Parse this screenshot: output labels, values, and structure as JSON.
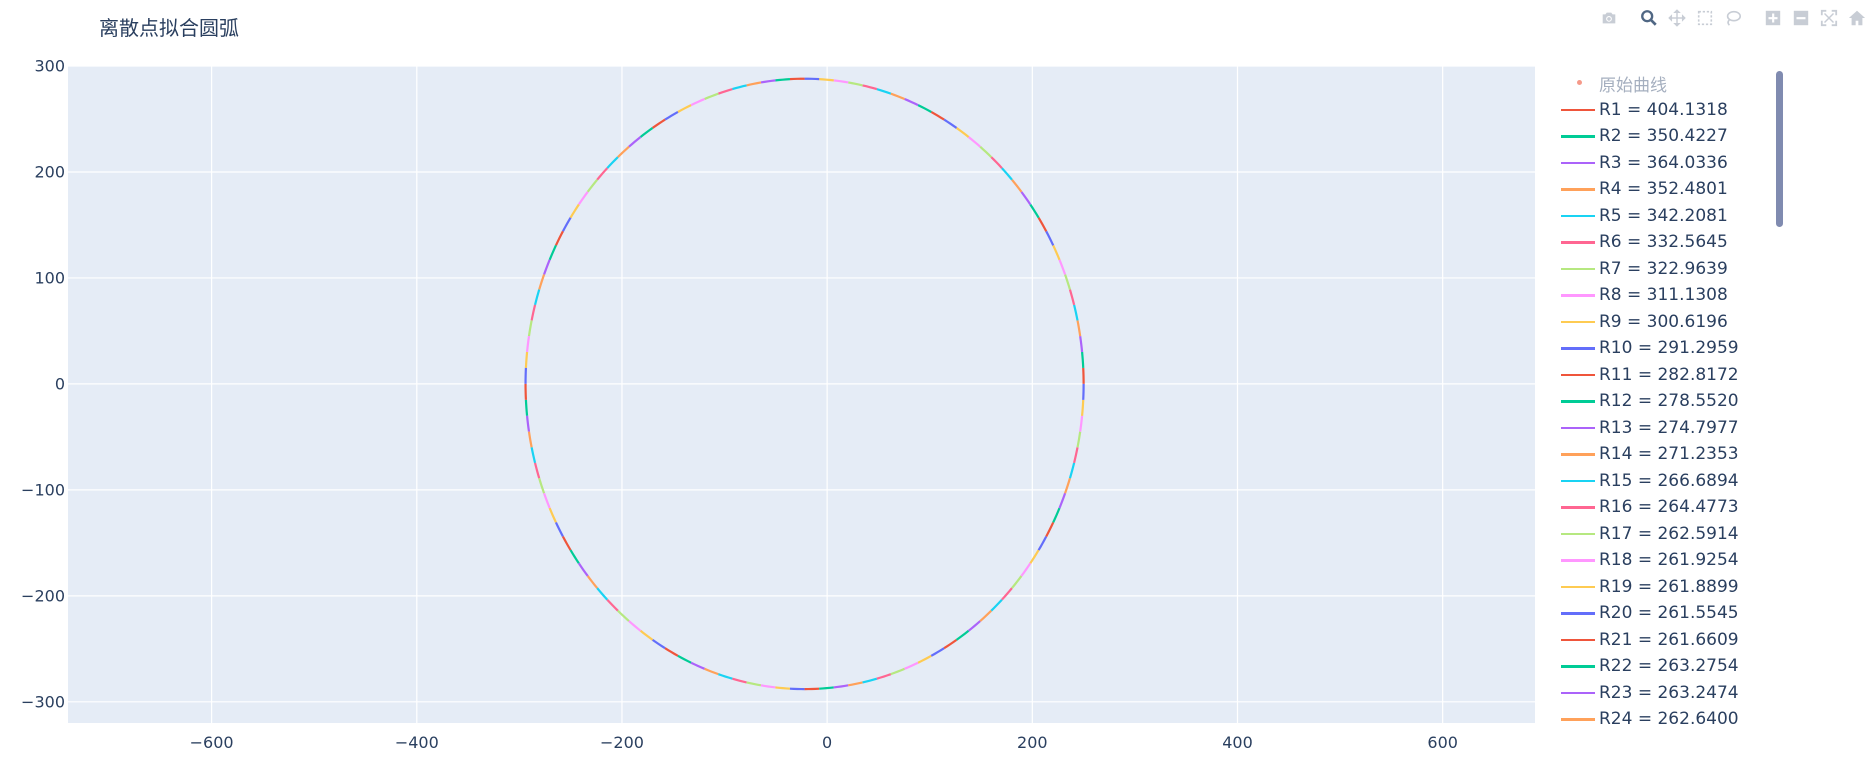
{
  "title": "离散点拟合圆弧",
  "modebar": {
    "buttons": [
      {
        "name": "camera-icon",
        "label": "Download plot as a png"
      },
      {
        "name": "zoom-icon",
        "label": "Zoom",
        "active": true
      },
      {
        "name": "pan-icon",
        "label": "Pan"
      },
      {
        "name": "box-select-icon",
        "label": "Box Select"
      },
      {
        "name": "lasso-icon",
        "label": "Lasso Select"
      },
      {
        "name": "zoom-in-icon",
        "label": "Zoom in"
      },
      {
        "name": "zoom-out-icon",
        "label": "Zoom out"
      },
      {
        "name": "autoscale-icon",
        "label": "Autoscale"
      },
      {
        "name": "home-icon",
        "label": "Reset axes"
      }
    ]
  },
  "chart_data": {
    "type": "line",
    "title": "离散点拟合圆弧",
    "xlim": [
      -740,
      690
    ],
    "ylim": [
      -320,
      300
    ],
    "xticks": [
      -600,
      -400,
      -200,
      0,
      200,
      400,
      600
    ],
    "yticks": [
      -300,
      -200,
      -100,
      0,
      100,
      200,
      300
    ],
    "xtick_labels": [
      "−600",
      "−400",
      "−200",
      "0",
      "200",
      "400",
      "600"
    ],
    "ytick_labels": [
      "−300",
      "−200",
      "−100",
      "0",
      "100",
      "200",
      "300"
    ],
    "grid": true,
    "legend_position": "right",
    "curve": {
      "center_x": -22,
      "center_y": 0,
      "semi_axis_x": 272,
      "semi_axis_y": 288,
      "segments": 120
    },
    "colors": [
      "#EF553B",
      "#00CC96",
      "#AB63FA",
      "#FFA15A",
      "#19D3F3",
      "#FF6692",
      "#B6E880",
      "#FF97FF",
      "#FECB52",
      "#636EFA"
    ],
    "series": [
      {
        "name": "原始曲线",
        "kind": "markers",
        "color": "#EF553B",
        "visible": "legendonly"
      },
      {
        "name": "R1 = 404.1318",
        "color": "#EF553B"
      },
      {
        "name": "R2 = 350.4227",
        "color": "#00CC96"
      },
      {
        "name": "R3 = 364.0336",
        "color": "#AB63FA"
      },
      {
        "name": "R4 = 352.4801",
        "color": "#FFA15A"
      },
      {
        "name": "R5 = 342.2081",
        "color": "#19D3F3"
      },
      {
        "name": "R6 = 332.5645",
        "color": "#FF6692"
      },
      {
        "name": "R7 = 322.9639",
        "color": "#B6E880"
      },
      {
        "name": "R8 = 311.1308",
        "color": "#FF97FF"
      },
      {
        "name": "R9 = 300.6196",
        "color": "#FECB52"
      },
      {
        "name": "R10 = 291.2959",
        "color": "#636EFA"
      },
      {
        "name": "R11 = 282.8172",
        "color": "#EF553B"
      },
      {
        "name": "R12 = 278.5520",
        "color": "#00CC96"
      },
      {
        "name": "R13 = 274.7977",
        "color": "#AB63FA"
      },
      {
        "name": "R14 = 271.2353",
        "color": "#FFA15A"
      },
      {
        "name": "R15 = 266.6894",
        "color": "#19D3F3"
      },
      {
        "name": "R16 = 264.4773",
        "color": "#FF6692"
      },
      {
        "name": "R17 = 262.5914",
        "color": "#B6E880"
      },
      {
        "name": "R18 = 261.9254",
        "color": "#FF97FF"
      },
      {
        "name": "R19 = 261.8899",
        "color": "#FECB52"
      },
      {
        "name": "R20 = 261.5545",
        "color": "#636EFA"
      },
      {
        "name": "R21 = 261.6609",
        "color": "#EF553B"
      },
      {
        "name": "R22 = 263.2754",
        "color": "#00CC96"
      },
      {
        "name": "R23 = 263.2474",
        "color": "#AB63FA"
      },
      {
        "name": "R24 = 262.6400",
        "color": "#FFA15A"
      }
    ]
  }
}
